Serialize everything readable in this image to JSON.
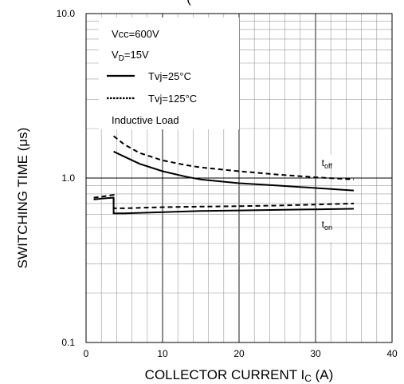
{
  "chart_data": {
    "type": "line",
    "title": "",
    "top_title_fragment": "(",
    "xlabel": {
      "main": "COLLECTOR CURRENT I",
      "sub": "C",
      "tail": " (A)"
    },
    "ylabel": "SWITCHING TIME (μs)",
    "xlim": [
      0,
      40
    ],
    "ylim": [
      0.1,
      10.0
    ],
    "yscale": "log",
    "grid": true,
    "x_ticks": [
      {
        "value": 0,
        "label": "0"
      },
      {
        "value": 10,
        "label": "10"
      },
      {
        "value": 20,
        "label": "20"
      },
      {
        "value": 30,
        "label": "30"
      },
      {
        "value": 40,
        "label": "40"
      }
    ],
    "y_ticks": [
      {
        "value": 0.1,
        "label": "0.1"
      },
      {
        "value": 1.0,
        "label": "1.0"
      },
      {
        "value": 10.0,
        "label": "10.0"
      }
    ],
    "legend": {
      "position": "top-left",
      "conditions": [
        {
          "main": "Vcc=600V",
          "sub": "",
          "tail": ""
        },
        {
          "main": "V",
          "sub": "D",
          "tail": "=15V"
        }
      ],
      "entries": [
        {
          "label": "Tvj=25°C",
          "style": "solid"
        },
        {
          "label": "Tvj=125°C",
          "style": "dotted"
        }
      ],
      "note": "Inductive Load"
    },
    "curve_labels": [
      {
        "main": "t",
        "sub": "off",
        "x": 30.8,
        "y": 1.18
      },
      {
        "main": "t",
        "sub": "on",
        "x": 30.8,
        "y": 0.5
      }
    ],
    "series": [
      {
        "label": "toff Tvj=25°C",
        "style": "solid",
        "x": [
          3.6,
          5,
          7,
          10,
          13,
          15,
          20,
          25,
          30,
          35
        ],
        "y": [
          1.45,
          1.35,
          1.22,
          1.1,
          1.02,
          0.98,
          0.93,
          0.9,
          0.87,
          0.84
        ]
      },
      {
        "label": "toff Tvj=125°C",
        "style": "dashed",
        "x": [
          3.6,
          5,
          7,
          10,
          13,
          15,
          20,
          25,
          30,
          35
        ],
        "y": [
          1.8,
          1.6,
          1.42,
          1.28,
          1.2,
          1.16,
          1.1,
          1.05,
          1.01,
          0.98
        ]
      },
      {
        "label": "ton Tvj=25°C",
        "style": "solid",
        "x": [
          1,
          2,
          3.6,
          3.6,
          5,
          10,
          15,
          20,
          25,
          30,
          35
        ],
        "y": [
          0.74,
          0.75,
          0.76,
          0.61,
          0.61,
          0.62,
          0.63,
          0.635,
          0.64,
          0.645,
          0.65
        ]
      },
      {
        "label": "ton Tvj=125°C",
        "style": "dashed",
        "x": [
          1,
          2,
          3.6,
          3.6,
          5,
          10,
          15,
          20,
          25,
          30,
          35
        ],
        "y": [
          0.76,
          0.77,
          0.79,
          0.655,
          0.655,
          0.665,
          0.67,
          0.675,
          0.68,
          0.69,
          0.7
        ]
      }
    ]
  }
}
